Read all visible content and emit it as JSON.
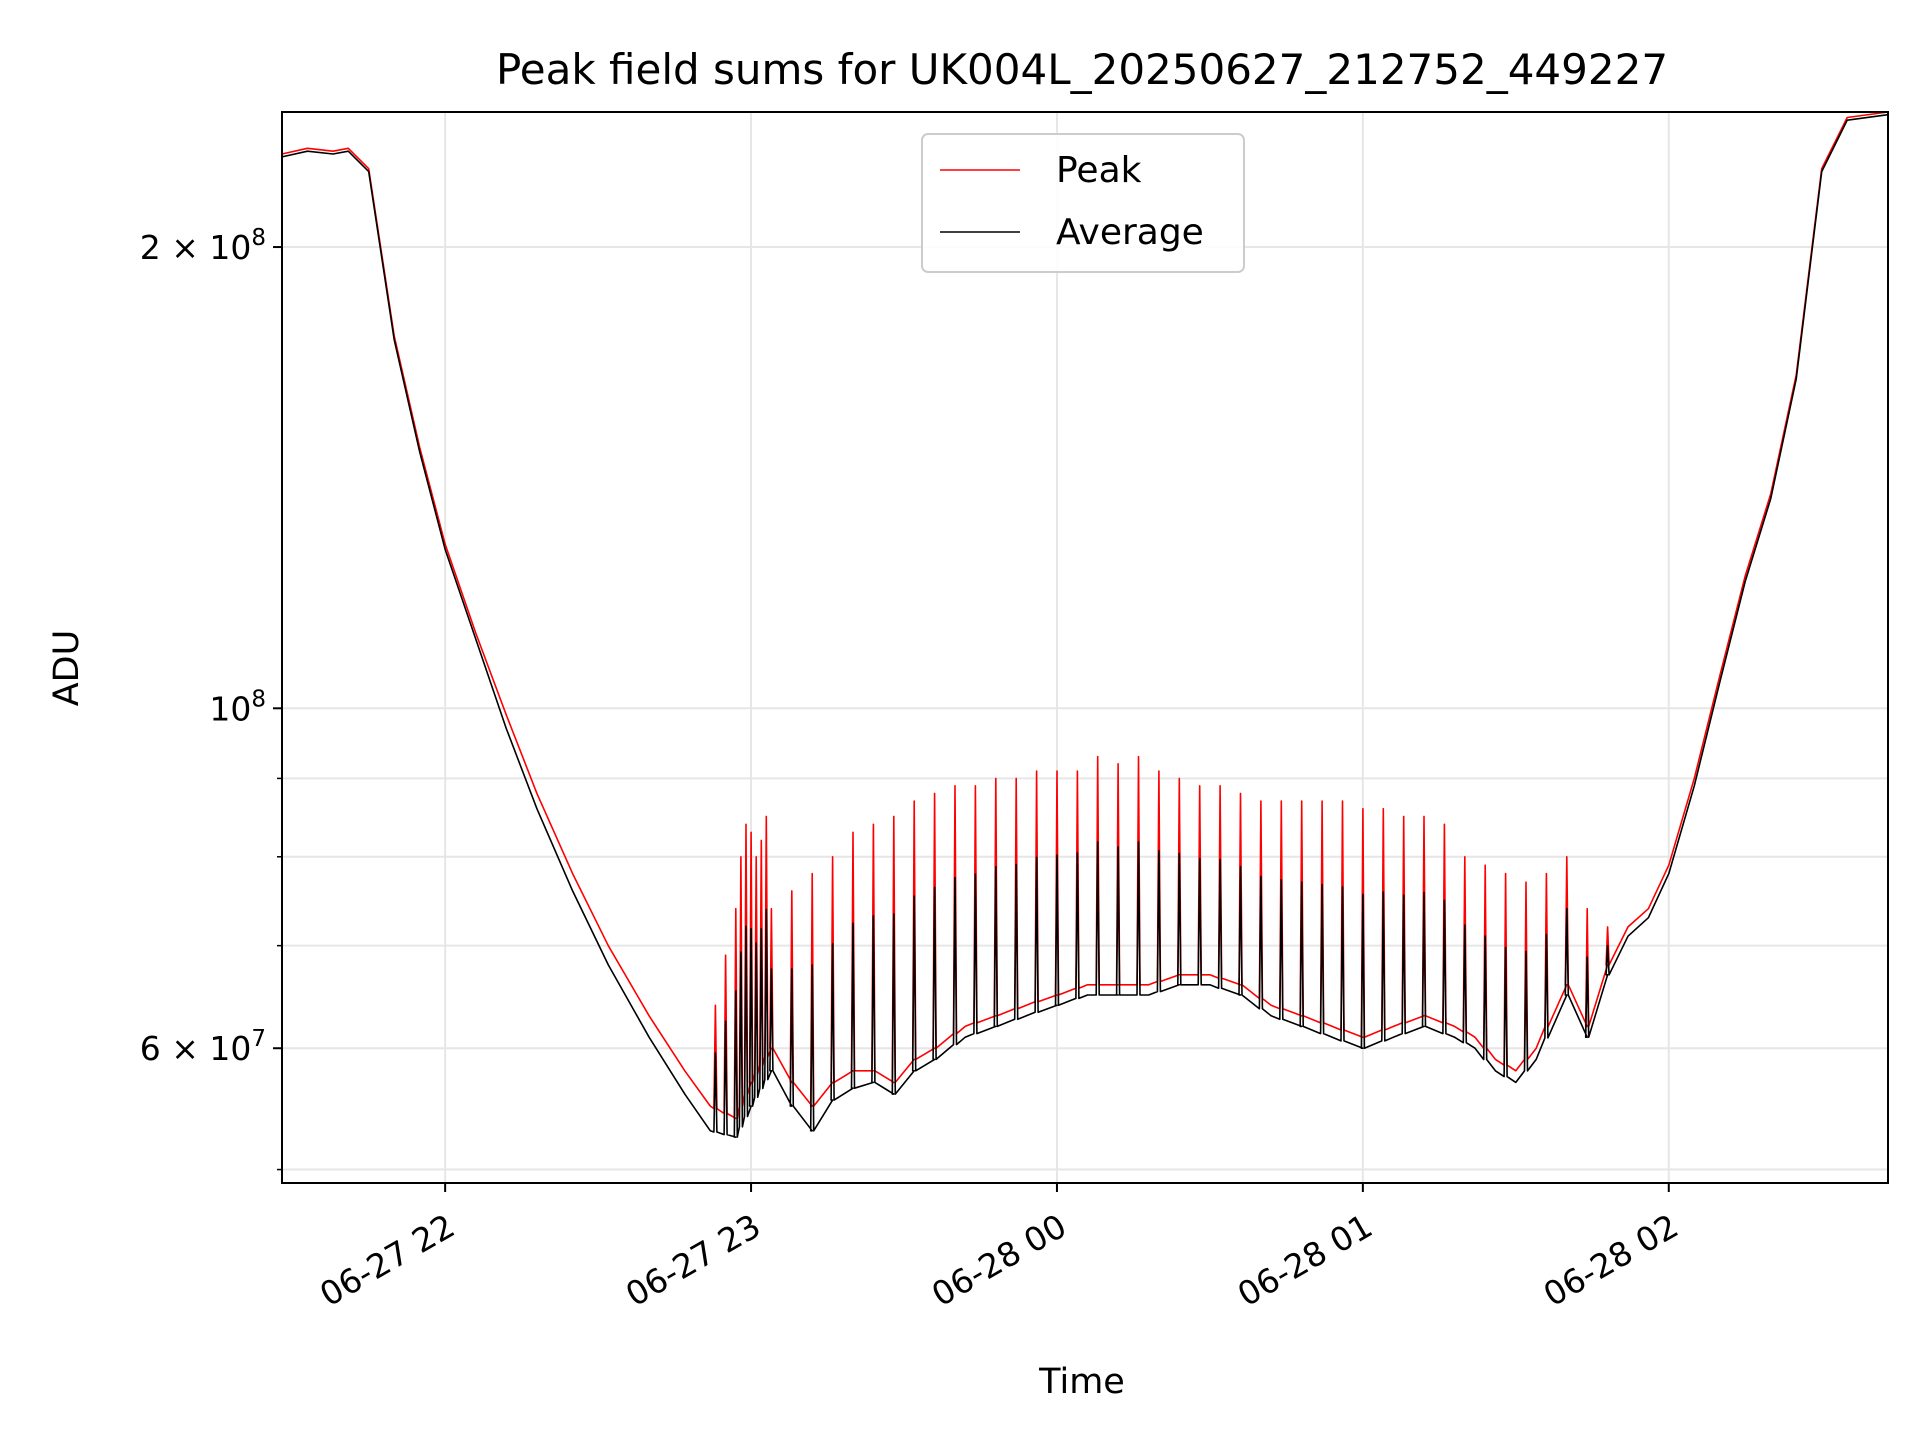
{
  "chart_data": {
    "type": "line",
    "title": "Peak field sums for UK004L_20250627_212752_449227",
    "xlabel": "Time",
    "ylabel": "ADU",
    "yscale": "log",
    "xlim": [
      "2025-06-27 21:28",
      "2025-06-28 02:43"
    ],
    "ylim": [
      49000000,
      245000000
    ],
    "grid": true,
    "legend_position": "top-center",
    "x_ticks": [
      {
        "value": "2025-06-27 22:00",
        "label": "06-27 22"
      },
      {
        "value": "2025-06-27 23:00",
        "label": "06-27 23"
      },
      {
        "value": "2025-06-28 00:00",
        "label": "06-28 00"
      },
      {
        "value": "2025-06-28 01:00",
        "label": "06-28 01"
      },
      {
        "value": "2025-06-28 02:00",
        "label": "06-28 02"
      }
    ],
    "y_ticks": [
      {
        "value": 60000000,
        "mantissa": "6",
        "base": "10",
        "exponent": "7"
      },
      {
        "value": 100000000,
        "mantissa": "",
        "base": "10",
        "exponent": "8"
      },
      {
        "value": 200000000,
        "mantissa": "2",
        "base": "10",
        "exponent": "8"
      }
    ],
    "y_minor_ticks": [
      50000000,
      70000000,
      80000000,
      90000000
    ],
    "series": [
      {
        "name": "Peak",
        "color": "#ff0000",
        "x": [
          "2025-06-27 21:28",
          "2025-06-27 21:33",
          "2025-06-27 21:38",
          "2025-06-27 21:41",
          "2025-06-27 21:45",
          "2025-06-27 21:50",
          "2025-06-27 21:55",
          "2025-06-27 22:00",
          "2025-06-27 22:06",
          "2025-06-27 22:12",
          "2025-06-27 22:18",
          "2025-06-27 22:25",
          "2025-06-27 22:32",
          "2025-06-27 22:40",
          "2025-06-27 22:47",
          "2025-06-27 22:52",
          "2025-06-27 22:57",
          "2025-06-27 23:00",
          "2025-06-27 23:04",
          "2025-06-27 23:08",
          "2025-06-27 23:12",
          "2025-06-27 23:16",
          "2025-06-27 23:20",
          "2025-06-27 23:24",
          "2025-06-27 23:28",
          "2025-06-27 23:32",
          "2025-06-27 23:36",
          "2025-06-27 23:42",
          "2025-06-27 23:48",
          "2025-06-27 23:54",
          "2025-06-28 00:00",
          "2025-06-28 00:06",
          "2025-06-28 00:12",
          "2025-06-28 00:18",
          "2025-06-28 00:24",
          "2025-06-28 00:30",
          "2025-06-28 00:36",
          "2025-06-28 00:42",
          "2025-06-28 00:48",
          "2025-06-28 00:54",
          "2025-06-28 01:00",
          "2025-06-28 01:06",
          "2025-06-28 01:12",
          "2025-06-28 01:18",
          "2025-06-28 01:22",
          "2025-06-28 01:26",
          "2025-06-28 01:30",
          "2025-06-28 01:34",
          "2025-06-28 01:40",
          "2025-06-28 01:44",
          "2025-06-28 01:48",
          "2025-06-28 01:52",
          "2025-06-28 01:56",
          "2025-06-28 02:00",
          "2025-06-28 02:05",
          "2025-06-28 02:10",
          "2025-06-28 02:15",
          "2025-06-28 02:20",
          "2025-06-28 02:25",
          "2025-06-28 02:30",
          "2025-06-28 02:35",
          "2025-06-28 02:43"
        ],
        "values": [
          230000000,
          232000000,
          231000000,
          232000000,
          225000000,
          175000000,
          148000000,
          128000000,
          112000000,
          99000000,
          88000000,
          78000000,
          70000000,
          63000000,
          58000000,
          55000000,
          54000000,
          57000000,
          60000000,
          57000000,
          55000000,
          57000000,
          58000000,
          58000000,
          57000000,
          59000000,
          60000000,
          62000000,
          63000000,
          64000000,
          65000000,
          66000000,
          66000000,
          66000000,
          67000000,
          67000000,
          66000000,
          64000000,
          63000000,
          62000000,
          61000000,
          62000000,
          63000000,
          62000000,
          61000000,
          59000000,
          58000000,
          60000000,
          66000000,
          62000000,
          68000000,
          72000000,
          74000000,
          79000000,
          90000000,
          105000000,
          122000000,
          138000000,
          165000000,
          225000000,
          243000000,
          245000000
        ]
      },
      {
        "name": "Average",
        "color": "#000000",
        "x": [
          "2025-06-27 21:28",
          "2025-06-27 21:33",
          "2025-06-27 21:38",
          "2025-06-27 21:41",
          "2025-06-27 21:45",
          "2025-06-27 21:50",
          "2025-06-27 21:55",
          "2025-06-27 22:00",
          "2025-06-27 22:06",
          "2025-06-27 22:12",
          "2025-06-27 22:18",
          "2025-06-27 22:25",
          "2025-06-27 22:32",
          "2025-06-27 22:40",
          "2025-06-27 22:47",
          "2025-06-27 22:52",
          "2025-06-27 22:57",
          "2025-06-27 23:00",
          "2025-06-27 23:04",
          "2025-06-27 23:08",
          "2025-06-27 23:12",
          "2025-06-27 23:16",
          "2025-06-27 23:20",
          "2025-06-27 23:24",
          "2025-06-27 23:28",
          "2025-06-27 23:32",
          "2025-06-27 23:36",
          "2025-06-27 23:42",
          "2025-06-27 23:48",
          "2025-06-27 23:54",
          "2025-06-28 00:00",
          "2025-06-28 00:06",
          "2025-06-28 00:12",
          "2025-06-28 00:18",
          "2025-06-28 00:24",
          "2025-06-28 00:30",
          "2025-06-28 00:36",
          "2025-06-28 00:42",
          "2025-06-28 00:48",
          "2025-06-28 00:54",
          "2025-06-28 01:00",
          "2025-06-28 01:06",
          "2025-06-28 01:12",
          "2025-06-28 01:18",
          "2025-06-28 01:22",
          "2025-06-28 01:26",
          "2025-06-28 01:30",
          "2025-06-28 01:34",
          "2025-06-28 01:40",
          "2025-06-28 01:44",
          "2025-06-28 01:48",
          "2025-06-28 01:52",
          "2025-06-28 01:56",
          "2025-06-28 02:00",
          "2025-06-28 02:05",
          "2025-06-28 02:10",
          "2025-06-28 02:15",
          "2025-06-28 02:20",
          "2025-06-28 02:25",
          "2025-06-28 02:30",
          "2025-06-28 02:35",
          "2025-06-28 02:43"
        ],
        "values": [
          229000000,
          231000000,
          230000000,
          231000000,
          224000000,
          174000000,
          147000000,
          127000000,
          111000000,
          97000000,
          86000000,
          76000000,
          68000000,
          61000000,
          56000000,
          53000000,
          52500000,
          55000000,
          58000000,
          55000000,
          53000000,
          55500000,
          56500000,
          57000000,
          56000000,
          58000000,
          59000000,
          61000000,
          62000000,
          63000000,
          64000000,
          65000000,
          65000000,
          65000000,
          66000000,
          66000000,
          65000000,
          63000000,
          62000000,
          61000000,
          60000000,
          61000000,
          62000000,
          61000000,
          60000000,
          58000000,
          57000000,
          59000000,
          65000000,
          61000000,
          67000000,
          71000000,
          73000000,
          78000000,
          89000000,
          104000000,
          121000000,
          137000000,
          164000000,
          224000000,
          242000000,
          244000000
        ]
      }
    ],
    "spikes": {
      "series": "Peak",
      "times": [
        "2025-06-27 22:53",
        "2025-06-27 22:55",
        "2025-06-27 22:57",
        "2025-06-27 22:58",
        "2025-06-27 22:59",
        "2025-06-27 23:00",
        "2025-06-27 23:01",
        "2025-06-27 23:02",
        "2025-06-27 23:03",
        "2025-06-27 23:04",
        "2025-06-27 23:08",
        "2025-06-27 23:12",
        "2025-06-27 23:16",
        "2025-06-27 23:20",
        "2025-06-27 23:24",
        "2025-06-27 23:28",
        "2025-06-27 23:32",
        "2025-06-27 23:36",
        "2025-06-27 23:40",
        "2025-06-27 23:44",
        "2025-06-27 23:48",
        "2025-06-27 23:52",
        "2025-06-27 23:56",
        "2025-06-28 00:00",
        "2025-06-28 00:04",
        "2025-06-28 00:08",
        "2025-06-28 00:12",
        "2025-06-28 00:16",
        "2025-06-28 00:20",
        "2025-06-28 00:24",
        "2025-06-28 00:28",
        "2025-06-28 00:32",
        "2025-06-28 00:36",
        "2025-06-28 00:40",
        "2025-06-28 00:44",
        "2025-06-28 00:48",
        "2025-06-28 00:52",
        "2025-06-28 00:56",
        "2025-06-28 01:00",
        "2025-06-28 01:04",
        "2025-06-28 01:08",
        "2025-06-28 01:12",
        "2025-06-28 01:16",
        "2025-06-28 01:20",
        "2025-06-28 01:24",
        "2025-06-28 01:28",
        "2025-06-28 01:32",
        "2025-06-28 01:36",
        "2025-06-28 01:40",
        "2025-06-28 01:44",
        "2025-06-28 01:48"
      ],
      "values": [
        64000000,
        69000000,
        74000000,
        80000000,
        84000000,
        83000000,
        80000000,
        82000000,
        85000000,
        74000000,
        76000000,
        78000000,
        80000000,
        83000000,
        84000000,
        85000000,
        87000000,
        88000000,
        89000000,
        89000000,
        90000000,
        90000000,
        91000000,
        91000000,
        91000000,
        93000000,
        92000000,
        93000000,
        91000000,
        90000000,
        89000000,
        89000000,
        88000000,
        87000000,
        87000000,
        87000000,
        87000000,
        87000000,
        86000000,
        86000000,
        85000000,
        85000000,
        84000000,
        80000000,
        79000000,
        78000000,
        77000000,
        78000000,
        80000000,
        74000000,
        72000000
      ]
    }
  }
}
